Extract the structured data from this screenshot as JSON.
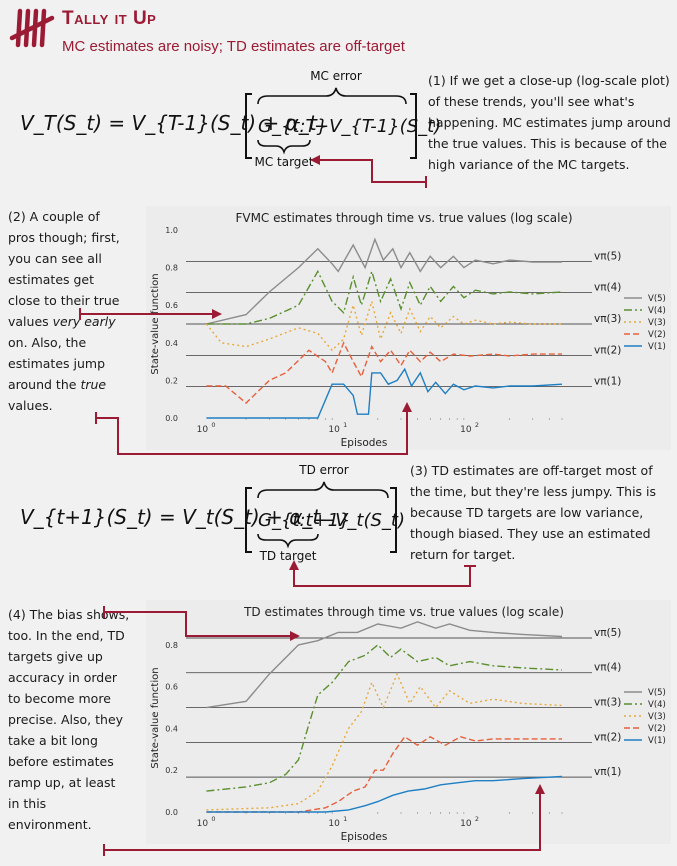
{
  "header": {
    "title": "Tally it Up",
    "subtitle": "MC estimates are noisy; TD estimates are off-target"
  },
  "formula_mc": {
    "lhs": "V_T(S_t) = V_{T-1}(S_t) + α_t",
    "error_label": "MC error",
    "target_term": "G_{t:T}",
    "minus_term": "−V_{T-1}(S_t)",
    "target_label": "MC target"
  },
  "formula_td": {
    "lhs": "V_{t+1}(S_t) = V_t(S_t) + α_t",
    "error_label": "TD error",
    "target_term": "G_{t:t+1}",
    "minus_term": "−V_t(S_t)",
    "target_label": "TD target"
  },
  "notes": {
    "n1": "(1) If we get a close-up (log-scale plot) of these trends, you'll see what's happening. MC estimates jump around the true values. This is because of the high variance of the MC targets.",
    "n2a": "(2) A couple of pros though; first, you can see all estimates get close to their true values",
    "n2b": "very early",
    "n2c": "on. Also, the estimates jump around the",
    "n2d": "true",
    "n2e": "values.",
    "n3": "(3) TD estimates are off-target most of the time, but they're less jumpy. This is because TD targets are low variance, though biased. They use an estimated return for target.",
    "n4": "(4) The bias shows, too. In the end, TD targets give up accuracy in order to become more precise. Also, they take a bit long before estimates ramp up, at least in this environment."
  },
  "chart_data": [
    {
      "type": "line",
      "title": "FVMC estimates through time vs. true values (log scale)",
      "xlabel": "Episodes",
      "ylabel": "State-value function",
      "xscale": "log",
      "xlim": [
        0.7,
        500
      ],
      "ylim": [
        0.0,
        1.0
      ],
      "yticks": [
        0.0,
        0.2,
        0.4,
        0.6,
        0.8,
        1.0
      ],
      "xticks": [
        "10^0",
        "10^1",
        "10^2"
      ],
      "grid": false,
      "legend": "right",
      "true_values": [
        {
          "label": "vπ(5)",
          "value": 0.833
        },
        {
          "label": "vπ(4)",
          "value": 0.667
        },
        {
          "label": "vπ(3)",
          "value": 0.5
        },
        {
          "label": "vπ(2)",
          "value": 0.333
        },
        {
          "label": "vπ(1)",
          "value": 0.167
        }
      ],
      "series": [
        {
          "name": "V(5)",
          "color": "#8c8c8c",
          "dash": "",
          "points": [
            [
              1,
              0.5
            ],
            [
              2,
              0.55
            ],
            [
              3,
              0.67
            ],
            [
              5,
              0.8
            ],
            [
              7,
              0.9
            ],
            [
              9,
              0.82
            ],
            [
              10,
              0.78
            ],
            [
              13,
              0.92
            ],
            [
              16,
              0.8
            ],
            [
              19,
              0.95
            ],
            [
              22,
              0.84
            ],
            [
              26,
              0.9
            ],
            [
              30,
              0.8
            ],
            [
              35,
              0.88
            ],
            [
              42,
              0.78
            ],
            [
              50,
              0.86
            ],
            [
              60,
              0.8
            ],
            [
              75,
              0.86
            ],
            [
              90,
              0.8
            ],
            [
              110,
              0.84
            ],
            [
              150,
              0.82
            ],
            [
              200,
              0.84
            ],
            [
              300,
              0.83
            ],
            [
              500,
              0.83
            ]
          ]
        },
        {
          "name": "V(4)",
          "color": "#5b8f2e",
          "dash": "8,3,2,3",
          "points": [
            [
              1,
              0.5
            ],
            [
              2,
              0.5
            ],
            [
              3,
              0.53
            ],
            [
              5,
              0.6
            ],
            [
              7,
              0.78
            ],
            [
              9,
              0.62
            ],
            [
              11,
              0.56
            ],
            [
              13,
              0.75
            ],
            [
              15,
              0.6
            ],
            [
              18,
              0.78
            ],
            [
              21,
              0.62
            ],
            [
              25,
              0.74
            ],
            [
              30,
              0.58
            ],
            [
              35,
              0.72
            ],
            [
              42,
              0.6
            ],
            [
              50,
              0.7
            ],
            [
              60,
              0.62
            ],
            [
              75,
              0.7
            ],
            [
              90,
              0.64
            ],
            [
              110,
              0.68
            ],
            [
              150,
              0.66
            ],
            [
              200,
              0.67
            ],
            [
              300,
              0.66
            ],
            [
              500,
              0.67
            ]
          ]
        },
        {
          "name": "V(3)",
          "color": "#e8a93a",
          "dash": "2,3",
          "points": [
            [
              1,
              0.5
            ],
            [
              1.3,
              0.4
            ],
            [
              2,
              0.38
            ],
            [
              3,
              0.42
            ],
            [
              5,
              0.48
            ],
            [
              7,
              0.45
            ],
            [
              9,
              0.36
            ],
            [
              11,
              0.42
            ],
            [
              13,
              0.6
            ],
            [
              15,
              0.44
            ],
            [
              18,
              0.62
            ],
            [
              21,
              0.42
            ],
            [
              25,
              0.56
            ],
            [
              30,
              0.45
            ],
            [
              35,
              0.58
            ],
            [
              42,
              0.46
            ],
            [
              50,
              0.54
            ],
            [
              60,
              0.48
            ],
            [
              75,
              0.54
            ],
            [
              90,
              0.5
            ],
            [
              110,
              0.52
            ],
            [
              150,
              0.5
            ],
            [
              200,
              0.51
            ],
            [
              300,
              0.5
            ],
            [
              500,
              0.5
            ]
          ]
        },
        {
          "name": "V(2)",
          "color": "#e8603c",
          "dash": "6,3",
          "points": [
            [
              1,
              0.17
            ],
            [
              1.4,
              0.17
            ],
            [
              2,
              0.08
            ],
            [
              3,
              0.2
            ],
            [
              4,
              0.24
            ],
            [
              6,
              0.36
            ],
            [
              8,
              0.3
            ],
            [
              9,
              0.24
            ],
            [
              11,
              0.4
            ],
            [
              13,
              0.3
            ],
            [
              15,
              0.22
            ],
            [
              18,
              0.38
            ],
            [
              21,
              0.3
            ],
            [
              25,
              0.36
            ],
            [
              30,
              0.28
            ],
            [
              35,
              0.36
            ],
            [
              42,
              0.3
            ],
            [
              50,
              0.35
            ],
            [
              60,
              0.3
            ],
            [
              75,
              0.34
            ],
            [
              100,
              0.33
            ],
            [
              150,
              0.34
            ],
            [
              200,
              0.33
            ],
            [
              300,
              0.34
            ],
            [
              500,
              0.34
            ]
          ]
        },
        {
          "name": "V(1)",
          "color": "#1e7fc4",
          "dash": "",
          "points": [
            [
              1,
              0.0
            ],
            [
              7,
              0.0
            ],
            [
              9,
              0.18
            ],
            [
              11,
              0.18
            ],
            [
              13,
              0.12
            ],
            [
              14,
              0.02
            ],
            [
              17,
              0.02
            ],
            [
              18,
              0.24
            ],
            [
              21,
              0.24
            ],
            [
              24,
              0.18
            ],
            [
              28,
              0.2
            ],
            [
              32,
              0.26
            ],
            [
              36,
              0.17
            ],
            [
              42,
              0.24
            ],
            [
              48,
              0.14
            ],
            [
              55,
              0.19
            ],
            [
              65,
              0.13
            ],
            [
              75,
              0.18
            ],
            [
              90,
              0.15
            ],
            [
              110,
              0.17
            ],
            [
              150,
              0.16
            ],
            [
              200,
              0.17
            ],
            [
              300,
              0.17
            ],
            [
              500,
              0.18
            ]
          ]
        }
      ]
    },
    {
      "type": "line",
      "title": "TD estimates through time vs. true values (log scale)",
      "xlabel": "Episodes",
      "ylabel": "State-value function",
      "xscale": "log",
      "xlim": [
        0.7,
        500
      ],
      "ylim": [
        0.0,
        0.9
      ],
      "yticks": [
        0.0,
        0.2,
        0.4,
        0.6,
        0.8
      ],
      "xticks": [
        "10^0",
        "10^1",
        "10^2"
      ],
      "grid": false,
      "legend": "right",
      "true_values": [
        {
          "label": "vπ(5)",
          "value": 0.833
        },
        {
          "label": "vπ(4)",
          "value": 0.667
        },
        {
          "label": "vπ(3)",
          "value": 0.5
        },
        {
          "label": "vπ(2)",
          "value": 0.333
        },
        {
          "label": "vπ(1)",
          "value": 0.167
        }
      ],
      "series": [
        {
          "name": "V(5)",
          "color": "#8c8c8c",
          "dash": "",
          "points": [
            [
              1,
              0.5
            ],
            [
              2,
              0.53
            ],
            [
              3,
              0.66
            ],
            [
              5,
              0.8
            ],
            [
              7,
              0.82
            ],
            [
              10,
              0.86
            ],
            [
              14,
              0.86
            ],
            [
              20,
              0.9
            ],
            [
              30,
              0.88
            ],
            [
              40,
              0.91
            ],
            [
              55,
              0.88
            ],
            [
              70,
              0.9
            ],
            [
              100,
              0.87
            ],
            [
              150,
              0.86
            ],
            [
              250,
              0.85
            ],
            [
              500,
              0.84
            ]
          ]
        },
        {
          "name": "V(4)",
          "color": "#5b8f2e",
          "dash": "8,3,2,3",
          "points": [
            [
              1,
              0.1
            ],
            [
              2,
              0.12
            ],
            [
              3,
              0.14
            ],
            [
              4,
              0.18
            ],
            [
              5,
              0.25
            ],
            [
              6,
              0.42
            ],
            [
              7,
              0.56
            ],
            [
              9,
              0.62
            ],
            [
              12,
              0.72
            ],
            [
              16,
              0.75
            ],
            [
              20,
              0.8
            ],
            [
              25,
              0.74
            ],
            [
              30,
              0.78
            ],
            [
              40,
              0.72
            ],
            [
              55,
              0.74
            ],
            [
              70,
              0.7
            ],
            [
              100,
              0.72
            ],
            [
              150,
              0.7
            ],
            [
              250,
              0.69
            ],
            [
              500,
              0.68
            ]
          ]
        },
        {
          "name": "V(3)",
          "color": "#e8a93a",
          "dash": "2,3",
          "points": [
            [
              1,
              0.01
            ],
            [
              3,
              0.02
            ],
            [
              5,
              0.04
            ],
            [
              7,
              0.1
            ],
            [
              9,
              0.22
            ],
            [
              12,
              0.4
            ],
            [
              15,
              0.48
            ],
            [
              18,
              0.62
            ],
            [
              22,
              0.5
            ],
            [
              28,
              0.66
            ],
            [
              35,
              0.52
            ],
            [
              42,
              0.6
            ],
            [
              55,
              0.5
            ],
            [
              70,
              0.58
            ],
            [
              100,
              0.52
            ],
            [
              150,
              0.54
            ],
            [
              250,
              0.52
            ],
            [
              500,
              0.51
            ]
          ]
        },
        {
          "name": "V(2)",
          "color": "#e8603c",
          "dash": "6,3",
          "points": [
            [
              1,
              0.0
            ],
            [
              5,
              0.0
            ],
            [
              8,
              0.02
            ],
            [
              10,
              0.05
            ],
            [
              13,
              0.1
            ],
            [
              16,
              0.12
            ],
            [
              19,
              0.2
            ],
            [
              22,
              0.2
            ],
            [
              26,
              0.28
            ],
            [
              32,
              0.36
            ],
            [
              40,
              0.32
            ],
            [
              50,
              0.36
            ],
            [
              65,
              0.32
            ],
            [
              85,
              0.36
            ],
            [
              110,
              0.34
            ],
            [
              150,
              0.35
            ],
            [
              250,
              0.35
            ],
            [
              500,
              0.35
            ]
          ]
        },
        {
          "name": "V(1)",
          "color": "#1e7fc4",
          "dash": "",
          "points": [
            [
              1,
              0.0
            ],
            [
              8,
              0.0
            ],
            [
              12,
              0.01
            ],
            [
              16,
              0.03
            ],
            [
              20,
              0.05
            ],
            [
              26,
              0.08
            ],
            [
              34,
              0.1
            ],
            [
              45,
              0.11
            ],
            [
              60,
              0.13
            ],
            [
              80,
              0.14
            ],
            [
              110,
              0.15
            ],
            [
              150,
              0.15
            ],
            [
              250,
              0.16
            ],
            [
              500,
              0.17
            ]
          ]
        }
      ]
    }
  ]
}
